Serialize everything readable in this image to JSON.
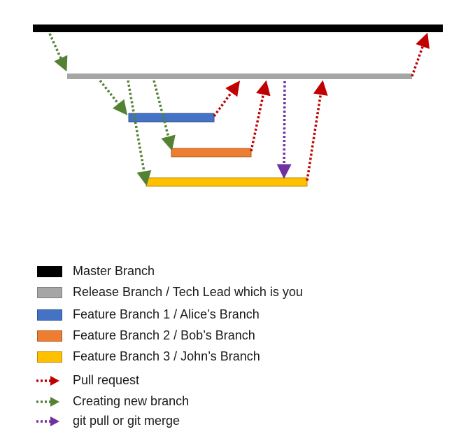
{
  "colors": {
    "master": "#000000",
    "release": "#A6A6A6",
    "feature1": "#4472C4",
    "feature2": "#ED7D31",
    "feature3": "#FFC000",
    "pull_request": "#C00000",
    "new_branch": "#548235",
    "git_pull": "#7030A0"
  },
  "legend": {
    "master": "Master Branch",
    "release": "Release Branch / Tech Lead which is you",
    "feature1": "Feature Branch 1 / Alice’s Branch",
    "feature2": "Feature Branch 2 / Bob’s Branch",
    "feature3": "Feature Branch 3 / John’s Branch",
    "pull_request": "Pull request",
    "new_branch": "Creating new branch",
    "git_pull": "git pull or git merge"
  }
}
